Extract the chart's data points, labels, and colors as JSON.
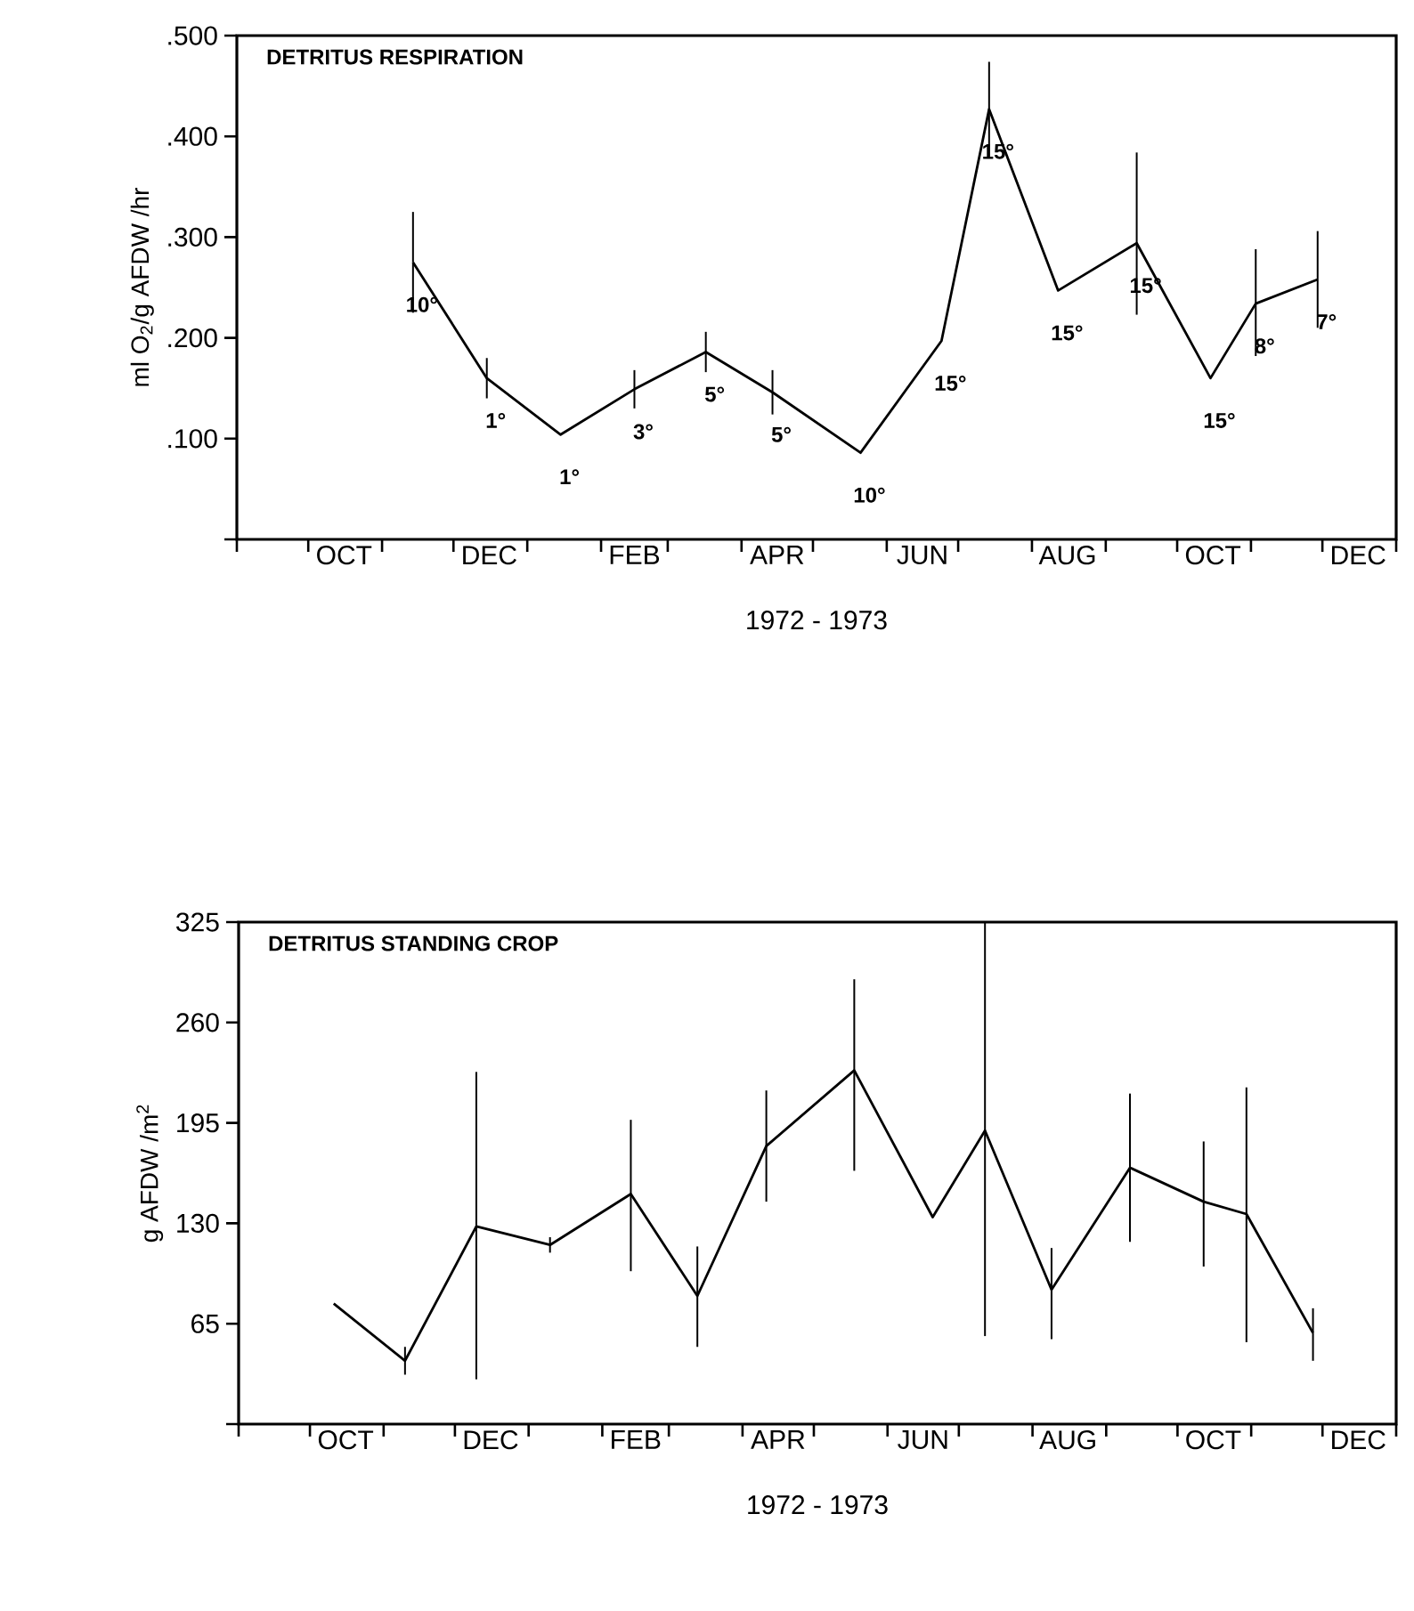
{
  "chart_data": [
    {
      "type": "line",
      "title": "DETRITUS RESPIRATION",
      "xlabel": "1972 - 1973",
      "ylabel": "ml O$_{2}$/g AFDW /hr",
      "color": "#000000",
      "x": [
        "1972-11-14",
        "1972-12-15",
        "1973-01-15",
        "1973-02-15",
        "1973-03-17",
        "1973-04-14",
        "1973-05-21",
        "1973-06-24",
        "1973-07-14",
        "1973-08-12",
        "1973-09-14",
        "1973-10-15",
        "1973-11-03",
        "1973-11-29"
      ],
      "values": [
        0.275,
        0.16,
        0.104,
        0.149,
        0.186,
        0.146,
        0.086,
        0.197,
        0.427,
        0.247,
        0.294,
        0.16,
        0.234,
        0.258
      ],
      "errors": [
        0.05,
        0.02,
        null,
        0.019,
        0.02,
        0.022,
        null,
        null,
        0.047,
        null,
        [
          0.223,
          0.384
        ],
        null,
        [
          0.182,
          0.288
        ],
        [
          0.21,
          0.306
        ]
      ],
      "xlim": [
        "1972-09-01",
        "1974-01-01"
      ],
      "xticks": [
        {
          "value": "1972-09-01",
          "label": null
        },
        {
          "value": "1972-10-01",
          "label": null
        },
        {
          "value": "1972-11-01",
          "label": null
        },
        {
          "value": "1972-12-01",
          "label": null
        },
        {
          "value": "1973-01-01",
          "label": null
        },
        {
          "value": "1973-02-01",
          "label": null
        },
        {
          "value": "1973-03-01",
          "label": null
        },
        {
          "value": "1973-04-01",
          "label": null
        },
        {
          "value": "1973-05-01",
          "label": null
        },
        {
          "value": "1973-06-01",
          "label": null
        },
        {
          "value": "1973-07-01",
          "label": null
        },
        {
          "value": "1973-08-01",
          "label": null
        },
        {
          "value": "1973-09-01",
          "label": null
        },
        {
          "value": "1973-10-01",
          "label": null
        },
        {
          "value": "1973-11-01",
          "label": null
        },
        {
          "value": "1973-12-01",
          "label": null
        },
        {
          "value": "1974-01-01",
          "label": null
        },
        {
          "value": "1972-10-16",
          "label": "OCT"
        },
        {
          "value": "1972-12-16",
          "label": "DEC"
        },
        {
          "value": "1973-02-15",
          "label": "FEB"
        },
        {
          "value": "1973-04-16",
          "label": "APR"
        },
        {
          "value": "1973-06-16",
          "label": "JUN"
        },
        {
          "value": "1973-08-16",
          "label": "AUG"
        },
        {
          "value": "1973-10-16",
          "label": "OCT"
        },
        {
          "value": "1973-12-16",
          "label": "DEC"
        }
      ],
      "ylim": [
        0,
        0.5
      ],
      "yticks": [
        {
          "value": 0,
          "label": null
        },
        {
          "value": 0.1,
          "label": ".100"
        },
        {
          "value": 0.2,
          "label": ".200"
        },
        {
          "value": 0.3,
          "label": ".300"
        },
        {
          "value": 0.4,
          "label": ".400"
        },
        {
          "value": 0.5,
          "label": ".500"
        }
      ],
      "annotations": [
        {
          "text": "10°",
          "x": "1972-11-14",
          "y": 0.275
        },
        {
          "text": "1°",
          "x": "1972-12-15",
          "y": 0.16
        },
        {
          "text": "1°",
          "x": "1973-01-15",
          "y": 0.104
        },
        {
          "text": "3°",
          "x": "1973-02-15",
          "y": 0.149
        },
        {
          "text": "5°",
          "x": "1973-03-17",
          "y": 0.186
        },
        {
          "text": "5°",
          "x": "1973-04-14",
          "y": 0.146
        },
        {
          "text": "10°",
          "x": "1973-05-21",
          "y": 0.086
        },
        {
          "text": "15°",
          "x": "1973-06-24",
          "y": 0.197
        },
        {
          "text": "15°",
          "x": "1973-07-14",
          "y": 0.427
        },
        {
          "text": "15°",
          "x": "1973-08-12",
          "y": 0.247
        },
        {
          "text": "15°",
          "x": "1973-09-14",
          "y": 0.294
        },
        {
          "text": "15°",
          "x": "1973-10-15",
          "y": 0.16
        },
        {
          "text": "8°",
          "x": "1973-11-03",
          "y": 0.234
        },
        {
          "text": "7°",
          "x": "1973-11-29",
          "y": 0.258
        }
      ]
    },
    {
      "type": "line",
      "title": "DETRITUS STANDING CROP",
      "xlabel": "1972 - 1973",
      "ylabel": "g AFDW /m$^{2}$",
      "color": "#000000",
      "x": [
        "1972-10-11",
        "1972-11-10",
        "1972-12-10",
        "1973-01-10",
        "1973-02-13",
        "1973-03-13",
        "1973-04-11",
        "1973-05-18",
        "1973-06-20",
        "1973-07-12",
        "1973-08-09",
        "1973-09-11",
        "1973-10-12",
        "1973-10-30",
        "1973-11-27"
      ],
      "values": [
        78,
        41,
        128,
        116,
        149,
        83,
        180,
        229,
        134,
        190,
        87,
        166,
        144,
        136,
        59
      ],
      "errors": [
        null,
        9,
        [
          29,
          228
        ],
        5,
        [
          99,
          197
        ],
        [
          50,
          115
        ],
        [
          144,
          216
        ],
        [
          164,
          288
        ],
        null,
        [
          57,
          325
        ],
        [
          55,
          114
        ],
        [
          118,
          214
        ],
        [
          102,
          183
        ],
        [
          53,
          218
        ],
        [
          41,
          75
        ]
      ],
      "xlim": [
        "1972-09-01",
        "1974-01-01"
      ],
      "xticks": [
        {
          "value": "1972-09-01",
          "label": null
        },
        {
          "value": "1972-10-01",
          "label": null
        },
        {
          "value": "1972-11-01",
          "label": null
        },
        {
          "value": "1972-12-01",
          "label": null
        },
        {
          "value": "1973-01-01",
          "label": null
        },
        {
          "value": "1973-02-01",
          "label": null
        },
        {
          "value": "1973-03-01",
          "label": null
        },
        {
          "value": "1973-04-01",
          "label": null
        },
        {
          "value": "1973-05-01",
          "label": null
        },
        {
          "value": "1973-06-01",
          "label": null
        },
        {
          "value": "1973-07-01",
          "label": null
        },
        {
          "value": "1973-08-01",
          "label": null
        },
        {
          "value": "1973-09-01",
          "label": null
        },
        {
          "value": "1973-10-01",
          "label": null
        },
        {
          "value": "1973-11-01",
          "label": null
        },
        {
          "value": "1973-12-01",
          "label": null
        },
        {
          "value": "1974-01-01",
          "label": null
        },
        {
          "value": "1972-10-16",
          "label": "OCT"
        },
        {
          "value": "1972-12-16",
          "label": "DEC"
        },
        {
          "value": "1973-02-15",
          "label": "FEB"
        },
        {
          "value": "1973-04-16",
          "label": "APR"
        },
        {
          "value": "1973-06-16",
          "label": "JUN"
        },
        {
          "value": "1973-08-16",
          "label": "AUG"
        },
        {
          "value": "1973-10-16",
          "label": "OCT"
        },
        {
          "value": "1973-12-16",
          "label": "DEC"
        }
      ],
      "ylim": [
        0,
        325
      ],
      "yticks": [
        {
          "value": 0,
          "label": null
        },
        65,
        130,
        195,
        260,
        325
      ]
    }
  ]
}
